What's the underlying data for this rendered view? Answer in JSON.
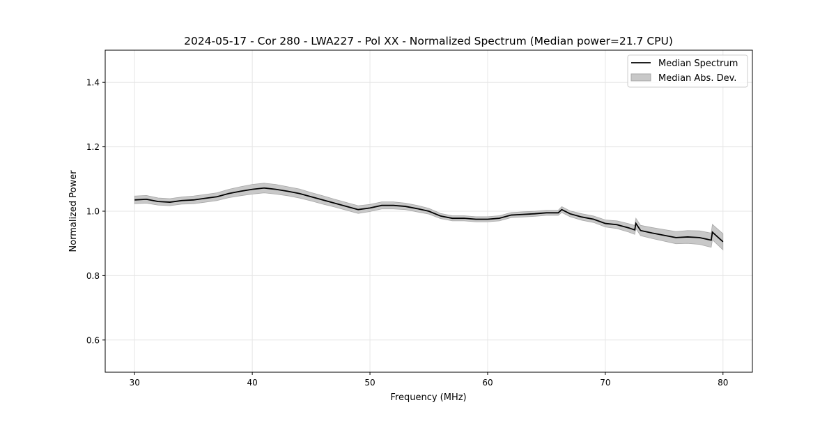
{
  "chart_data": {
    "type": "line",
    "title": "2024-05-17 - Cor 280 - LWA227 - Pol XX - Normalized Spectrum (Median power=21.7 CPU)",
    "xlabel": "Frequency (MHz)",
    "ylabel": "Normalized Power",
    "xlim": [
      27.5,
      82.5
    ],
    "ylim": [
      0.5,
      1.5
    ],
    "xticks": [
      30,
      40,
      50,
      60,
      70,
      80
    ],
    "yticks": [
      0.6,
      0.8,
      1.0,
      1.2,
      1.4
    ],
    "ytick_labels": [
      "0.6",
      "0.8",
      "1.0",
      "1.2",
      "1.4"
    ],
    "grid": true,
    "legend_position": "top-right",
    "legend": [
      "Median Spectrum",
      "Median Abs. Dev."
    ],
    "colors": {
      "line": "#000000",
      "band": "#c8c8c8",
      "band_edge": "#a8a8a8",
      "grid": "#e6e6e6"
    },
    "x": [
      30,
      31,
      32,
      33,
      34,
      35,
      36,
      37,
      38,
      39,
      40,
      41,
      42,
      43,
      44,
      45,
      46,
      47,
      48,
      49,
      50,
      51,
      52,
      53,
      54,
      55,
      56,
      57,
      58,
      59,
      60,
      61,
      62,
      63,
      64,
      65,
      66,
      66.3,
      67,
      68,
      69,
      70,
      71,
      72,
      72.5,
      72.6,
      73,
      74,
      75,
      76,
      77,
      78,
      79,
      79.1,
      80
    ],
    "series": [
      {
        "name": "Median Spectrum",
        "values": [
          1.035,
          1.037,
          1.03,
          1.028,
          1.033,
          1.035,
          1.04,
          1.045,
          1.055,
          1.062,
          1.068,
          1.072,
          1.068,
          1.062,
          1.055,
          1.045,
          1.035,
          1.025,
          1.015,
          1.005,
          1.01,
          1.018,
          1.018,
          1.015,
          1.008,
          1.0,
          0.985,
          0.978,
          0.978,
          0.975,
          0.975,
          0.978,
          0.988,
          0.99,
          0.992,
          0.995,
          0.995,
          1.005,
          0.992,
          0.982,
          0.975,
          0.962,
          0.958,
          0.948,
          0.942,
          0.962,
          0.94,
          0.932,
          0.925,
          0.918,
          0.92,
          0.918,
          0.91,
          0.935,
          0.905
        ]
      },
      {
        "name": "Median Abs. Dev.",
        "values": [
          0.012,
          0.012,
          0.011,
          0.011,
          0.011,
          0.012,
          0.012,
          0.012,
          0.013,
          0.014,
          0.015,
          0.015,
          0.015,
          0.014,
          0.014,
          0.013,
          0.013,
          0.012,
          0.012,
          0.012,
          0.011,
          0.011,
          0.011,
          0.01,
          0.01,
          0.009,
          0.008,
          0.008,
          0.008,
          0.008,
          0.008,
          0.008,
          0.008,
          0.008,
          0.008,
          0.008,
          0.008,
          0.009,
          0.009,
          0.01,
          0.01,
          0.011,
          0.012,
          0.013,
          0.014,
          0.016,
          0.016,
          0.017,
          0.018,
          0.019,
          0.02,
          0.021,
          0.022,
          0.024,
          0.025
        ]
      }
    ]
  }
}
